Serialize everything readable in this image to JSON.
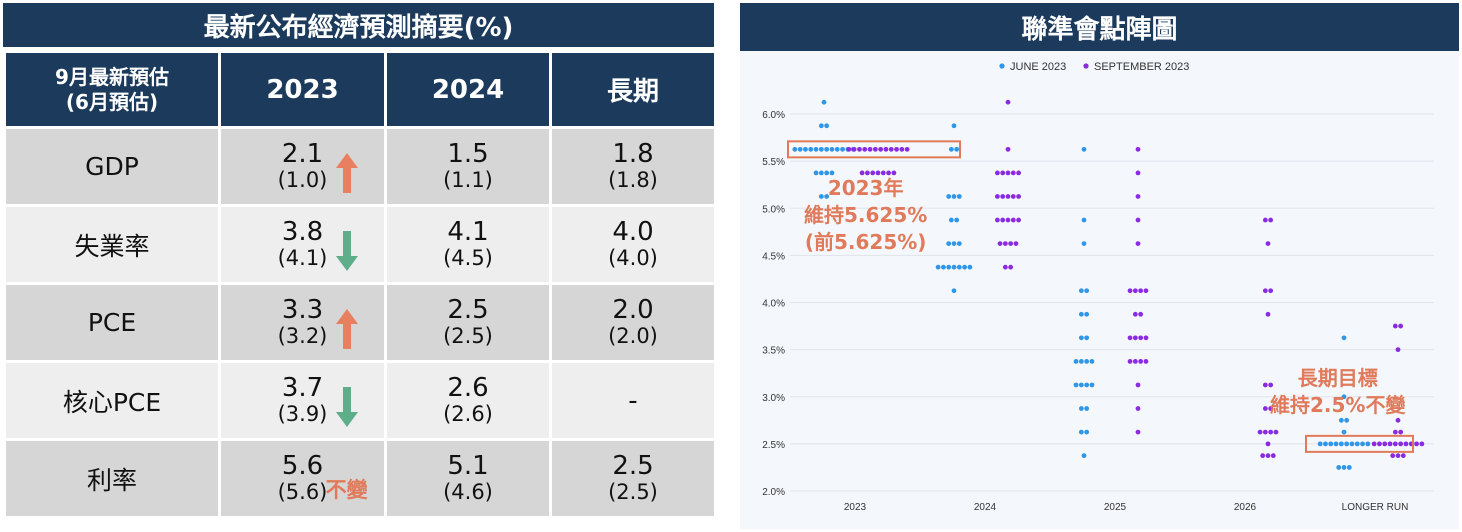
{
  "table": {
    "title": "最新公布經濟預測摘要(%)",
    "header": {
      "label_line1": "9月最新預估",
      "label_line2": "(6月預估)",
      "col1": "2023",
      "col2": "2024",
      "col3": "長期"
    },
    "rows": [
      {
        "name": "GDP",
        "c1": "2.1",
        "c1p": "(1.0)",
        "c1_change": "up",
        "c2": "1.5",
        "c2p": "(1.1)",
        "c3": "1.8",
        "c3p": "(1.8)"
      },
      {
        "name": "失業率",
        "c1": "3.8",
        "c1p": "(4.1)",
        "c1_change": "down",
        "c2": "4.1",
        "c2p": "(4.5)",
        "c3": "4.0",
        "c3p": "(4.0)"
      },
      {
        "name": "PCE",
        "c1": "3.3",
        "c1p": "(3.2)",
        "c1_change": "up",
        "c2": "2.5",
        "c2p": "(2.5)",
        "c3": "2.0",
        "c3p": "(2.0)"
      },
      {
        "name": "核心PCE",
        "c1": "3.7",
        "c1p": "(3.9)",
        "c1_change": "down",
        "c2": "2.6",
        "c2p": "(2.6)",
        "c3": "-",
        "c3p": ""
      },
      {
        "name": "利率",
        "c1": "5.6",
        "c1p": "(5.6)",
        "c1_change": "unchanged",
        "c1_note": "不變",
        "c2": "5.1",
        "c2p": "(4.6)",
        "c3": "2.5",
        "c3p": "(2.5)"
      }
    ],
    "colors": {
      "header_bg": "#1b3a5c",
      "up": "#e8805f",
      "down": "#5fae8a",
      "note": "#e07a5a"
    }
  },
  "dotplot": {
    "title": "聯準會點陣圖",
    "annotation_2023": [
      "2023年",
      "維持5.625%",
      "(前5.625%)"
    ],
    "annotation_longrun": [
      "長期目標",
      "維持2.5%不變"
    ]
  },
  "chart_data": {
    "type": "scatter",
    "title": "聯準會點陣圖",
    "categories": [
      "2023",
      "2024",
      "2025",
      "2026",
      "LONGER RUN"
    ],
    "y_ticks": [
      "2.0%",
      "2.5%",
      "3.0%",
      "3.5%",
      "4.0%",
      "4.5%",
      "5.0%",
      "5.5%",
      "6.0%"
    ],
    "ylim": [
      2.0,
      6.0
    ],
    "legend_position": "top-center",
    "grid": true,
    "series": [
      {
        "name": "JUNE 2023",
        "color": "#2f96e8",
        "points": {
          "2023": [
            [
              6.125,
              1
            ],
            [
              5.875,
              2
            ],
            [
              5.625,
              12
            ],
            [
              5.375,
              4
            ],
            [
              5.125,
              2
            ]
          ],
          "2024": [
            [
              5.875,
              1
            ],
            [
              5.625,
              2
            ],
            [
              5.125,
              3
            ],
            [
              4.875,
              2
            ],
            [
              4.625,
              3
            ],
            [
              4.375,
              7
            ],
            [
              4.125,
              1
            ]
          ],
          "2025": [
            [
              5.625,
              1
            ],
            [
              4.875,
              1
            ],
            [
              4.625,
              1
            ],
            [
              4.125,
              2
            ],
            [
              3.875,
              2
            ],
            [
              3.625,
              2
            ],
            [
              3.375,
              4
            ],
            [
              3.125,
              4
            ],
            [
              2.875,
              2
            ],
            [
              2.625,
              2
            ],
            [
              2.375,
              1
            ]
          ],
          "2026": [],
          "LONGER RUN": [
            [
              3.625,
              1
            ],
            [
              3.0,
              1
            ],
            [
              2.75,
              2
            ],
            [
              2.625,
              1
            ],
            [
              2.5,
              10
            ],
            [
              2.25,
              3
            ]
          ]
        }
      },
      {
        "name": "SEPTEMBER 2023",
        "color": "#8a2be2",
        "points": {
          "2023": [
            [
              5.625,
              12
            ],
            [
              5.375,
              7
            ]
          ],
          "2024": [
            [
              6.125,
              1
            ],
            [
              5.625,
              1
            ],
            [
              5.375,
              5
            ],
            [
              5.125,
              5
            ],
            [
              4.875,
              5
            ],
            [
              4.625,
              4
            ],
            [
              4.375,
              2
            ]
          ],
          "2025": [
            [
              5.625,
              1
            ],
            [
              5.375,
              1
            ],
            [
              5.125,
              1
            ],
            [
              4.875,
              1
            ],
            [
              4.625,
              1
            ],
            [
              4.125,
              4
            ],
            [
              3.875,
              2
            ],
            [
              3.625,
              4
            ],
            [
              3.375,
              4
            ],
            [
              3.125,
              1
            ],
            [
              2.875,
              1
            ],
            [
              2.625,
              1
            ]
          ],
          "2026": [
            [
              4.875,
              2
            ],
            [
              4.625,
              1
            ],
            [
              4.125,
              2
            ],
            [
              3.875,
              1
            ],
            [
              3.125,
              2
            ],
            [
              2.875,
              2
            ],
            [
              2.625,
              4
            ],
            [
              2.5,
              1
            ],
            [
              2.375,
              3
            ]
          ],
          "LONGER RUN": [
            [
              3.75,
              2
            ],
            [
              3.5,
              1
            ],
            [
              2.75,
              1
            ],
            [
              2.625,
              2
            ],
            [
              2.5,
              10
            ],
            [
              2.375,
              3
            ]
          ]
        }
      }
    ]
  }
}
